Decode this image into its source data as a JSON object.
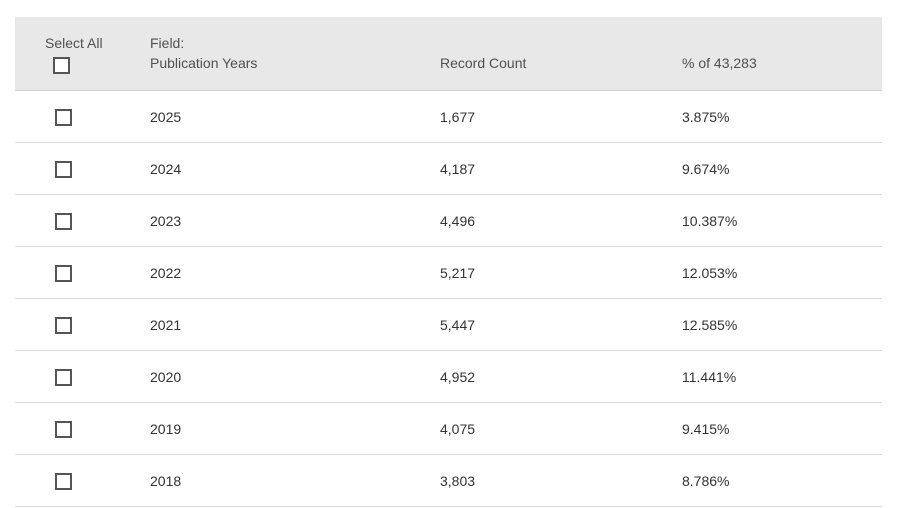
{
  "header": {
    "select_all_label": "Select All",
    "field_label": "Field:",
    "field_value": "Publication Years",
    "count_label": "Record Count",
    "percent_label": "% of 43,283"
  },
  "rows": [
    {
      "year": "2025",
      "count": "1,677",
      "percent": "3.875%"
    },
    {
      "year": "2024",
      "count": "4,187",
      "percent": "9.674%"
    },
    {
      "year": "2023",
      "count": "4,496",
      "percent": "10.387%"
    },
    {
      "year": "2022",
      "count": "5,217",
      "percent": "12.053%"
    },
    {
      "year": "2021",
      "count": "5,447",
      "percent": "12.585%"
    },
    {
      "year": "2020",
      "count": "4,952",
      "percent": "11.441%"
    },
    {
      "year": "2019",
      "count": "4,075",
      "percent": "9.415%"
    },
    {
      "year": "2018",
      "count": "3,803",
      "percent": "8.786%"
    }
  ]
}
